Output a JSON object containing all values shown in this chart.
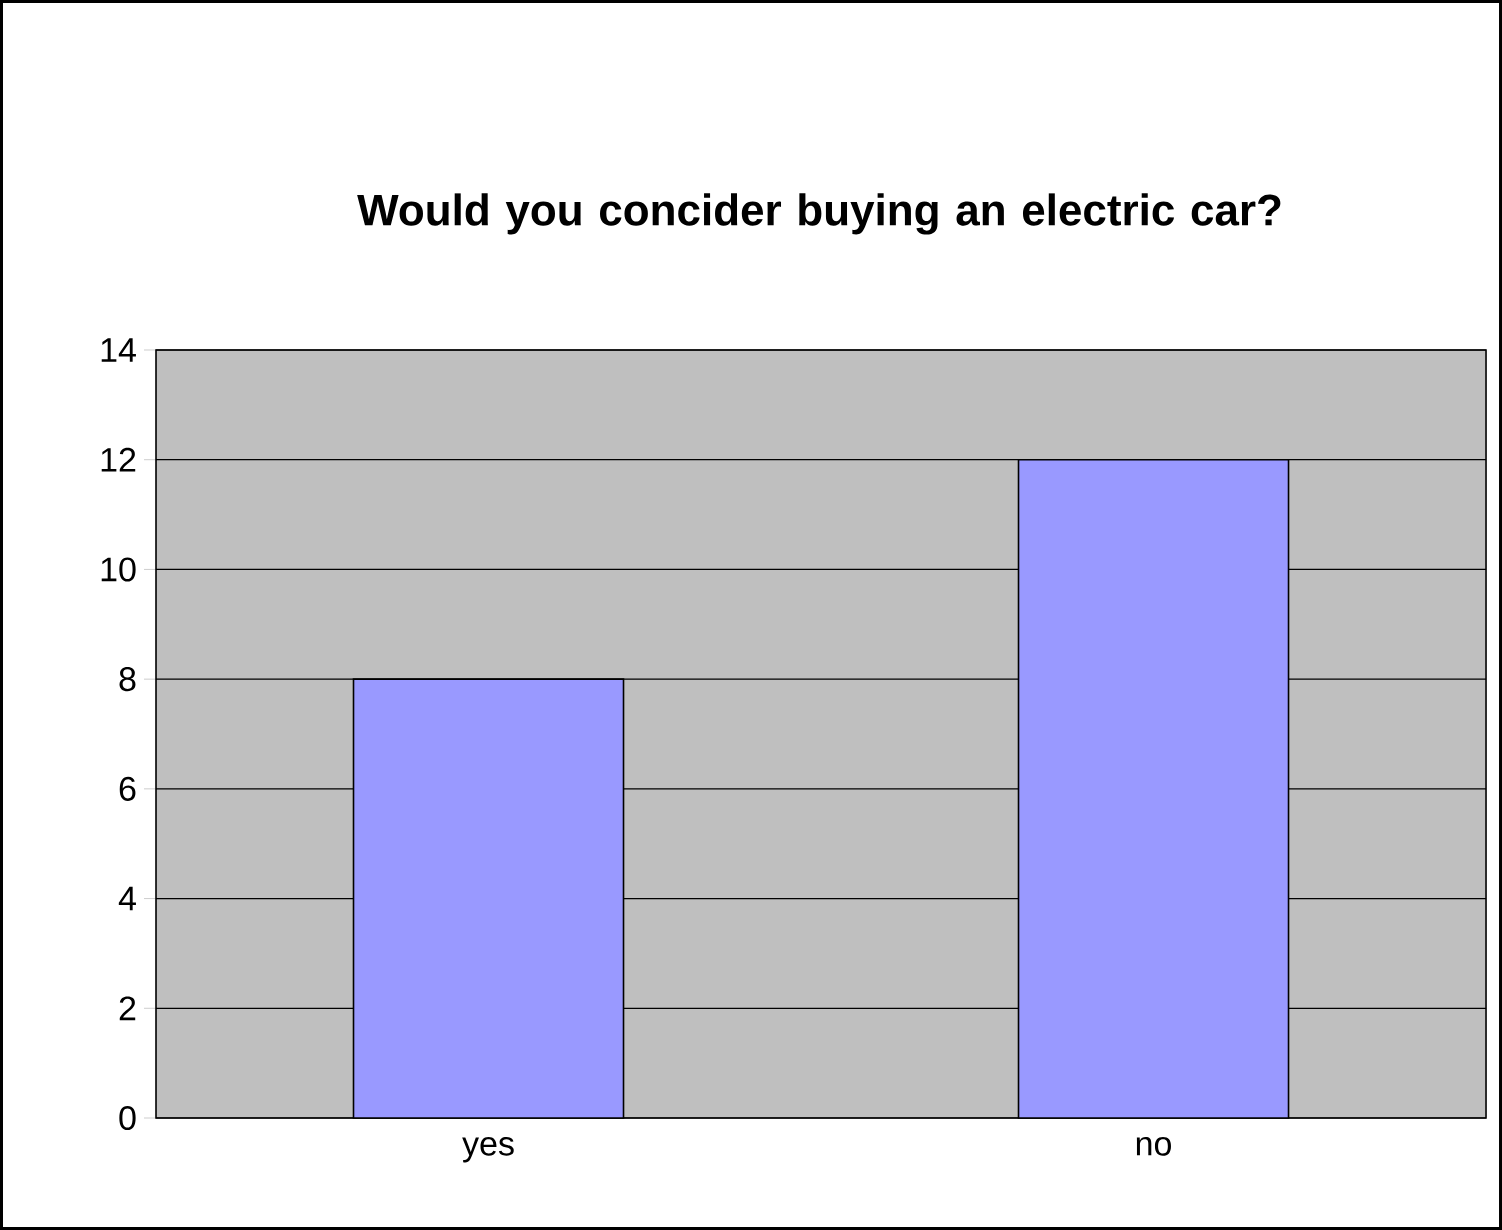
{
  "chart_data": {
    "type": "bar",
    "title": "Would you concider buying an electric car?",
    "categories": [
      "yes",
      "no"
    ],
    "values": [
      8,
      12
    ],
    "color": "#9999ff",
    "ylim": [
      0,
      14
    ],
    "yticks": [
      0,
      2,
      4,
      6,
      8,
      10,
      12,
      14
    ],
    "grid": "y"
  }
}
